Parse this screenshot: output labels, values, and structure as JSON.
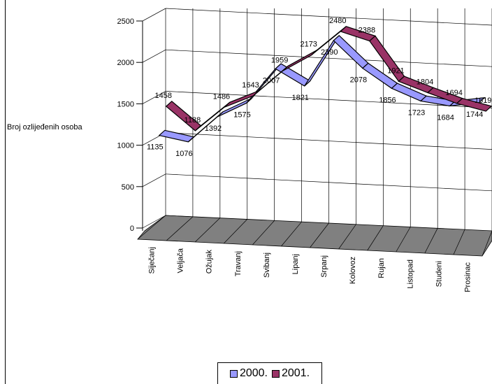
{
  "chart_data": {
    "type": "line",
    "ylabel": "Broj ozlijeđenih osoba",
    "ylim": [
      0,
      2500
    ],
    "yticks": [
      "0",
      "500",
      "1000",
      "1500",
      "2000",
      "2500"
    ],
    "categories": [
      "Siječanj",
      "Veljača",
      "Ožujak",
      "Travanj",
      "Svibanj",
      "Lipanj",
      "Srpanj",
      "Kolovoz",
      "Rujan",
      "Listopad",
      "Studeni",
      "Prosinac"
    ],
    "series": [
      {
        "name": "2000.",
        "color": "#9999ff",
        "values": [
          1135,
          1076,
          1392,
          1575,
          2007,
          1821,
          2390,
          2078,
          1856,
          1723,
          1684,
          1744
        ]
      },
      {
        "name": "2001.",
        "color": "#993366",
        "values": [
          1458,
          1188,
          1486,
          1643,
          1959,
          2173,
          2480,
          2388,
          1921,
          1804,
          1694,
          1619
        ]
      }
    ],
    "grid": true,
    "legend": "bottom"
  }
}
